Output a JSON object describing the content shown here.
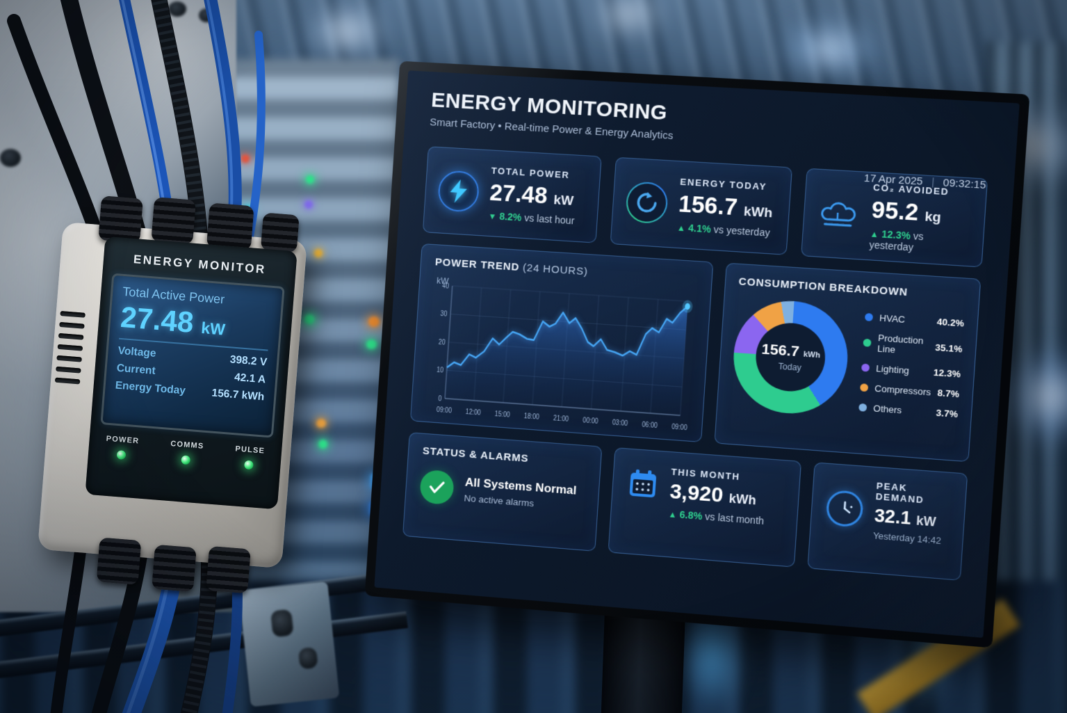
{
  "colors": {
    "accent_blue": "#2e7bf0",
    "accent_cyan": "#46c8ff",
    "positive_green": "#2fd08f",
    "led_green": "#3ce87c",
    "status_green": "#1ba25b",
    "stripe_yellow": "#e3b23a"
  },
  "device": {
    "title": "ENERGY MONITOR",
    "lcd": {
      "label": "Total Active Power",
      "value": "27.48",
      "unit": "kW",
      "rows": [
        {
          "label": "Voltage",
          "value": "398.2 V"
        },
        {
          "label": "Current",
          "value": "42.1 A"
        },
        {
          "label": "Energy Today",
          "value": "156.7 kWh"
        }
      ]
    },
    "leds": [
      {
        "label": "POWER"
      },
      {
        "label": "COMMS"
      },
      {
        "label": "PULSE"
      }
    ]
  },
  "monitor": {
    "header": {
      "title": "ENERGY MONITORING",
      "subtitle": "Smart Factory • Real-time Power & Energy Analytics",
      "date": "17 Apr 2025",
      "separator": "|",
      "time": "09:32:15"
    },
    "kpis": [
      {
        "label": "TOTAL POWER",
        "value": "27.48",
        "unit": "kW",
        "arrow": "▼",
        "delta": "8.2%",
        "delta_suffix": "vs last hour",
        "icon": "bolt"
      },
      {
        "label": "ENERGY TODAY",
        "value": "156.7",
        "unit": "kWh",
        "arrow": "▲",
        "delta": "4.1%",
        "delta_suffix": "vs yesterday",
        "icon": "cycle"
      },
      {
        "label": "CO₂ AVOIDED",
        "value": "95.2",
        "unit": "kg",
        "arrow": "▲",
        "delta": "12.3%",
        "delta_suffix": "vs yesterday",
        "icon": "cloud"
      }
    ],
    "power_trend": {
      "title": "POWER TREND",
      "subtitle": "(24 HOURS)",
      "unit_label": "kW"
    },
    "breakdown": {
      "title": "CONSUMPTION BREAKDOWN",
      "center_value": "156.7",
      "center_unit": "kWh",
      "center_sub": "Today"
    },
    "status": {
      "title": "STATUS & ALARMS",
      "headline": "All Systems Normal",
      "sub": "No active alarms"
    },
    "month": {
      "label": "THIS MONTH",
      "value": "3,920",
      "unit": "kWh",
      "arrow": "▲",
      "delta": "6.8%",
      "delta_suffix": "vs last month"
    },
    "peak": {
      "label": "PEAK DEMAND",
      "value": "32.1",
      "unit": "kW",
      "sub": "Yesterday 14:42"
    }
  },
  "chart_data": [
    {
      "type": "line",
      "title": "POWER TREND (24 HOURS)",
      "xlabel": "",
      "ylabel": "kW",
      "ylim": [
        0,
        40
      ],
      "yticks": [
        0,
        10,
        20,
        30,
        40
      ],
      "grid": true,
      "legend_position": "none",
      "series_color": "#46a6f5",
      "x_tick_labels": [
        "09:00",
        "12:00",
        "15:00",
        "18:00",
        "21:00",
        "00:00",
        "03:00",
        "06:00",
        "09:00"
      ],
      "x_hours": [
        0,
        0.7,
        1.4,
        2.2,
        2.9,
        3.7,
        4.5,
        5.2,
        5.9,
        6.5,
        7.2,
        8.0,
        8.7,
        9.5,
        10.2,
        10.8,
        11.5,
        12.2,
        12.8,
        13.5,
        14.2,
        14.8,
        15.5,
        16.2,
        17.0,
        17.8,
        18.5,
        19.2,
        20.0,
        20.6,
        21.3,
        22.0,
        22.6,
        23.3,
        24
      ],
      "values": [
        11,
        13,
        12.2,
        16.2,
        15.2,
        17.6,
        22.4,
        20.4,
        23.1,
        25.2,
        24.5,
        23.1,
        22.8,
        29.6,
        27.9,
        29.1,
        33.2,
        29.6,
        31.5,
        28.0,
        23.4,
        22.1,
        24.7,
        21.1,
        20.5,
        19.5,
        21.2,
        20.1,
        27.6,
        29.8,
        28.5,
        33.4,
        32.2,
        35.8,
        38.2
      ]
    },
    {
      "type": "pie",
      "title": "CONSUMPTION BREAKDOWN",
      "center_label": "156.7 kWh Today",
      "segments": [
        {
          "name": "HVAC",
          "pct": 40.2,
          "pct_label": "40.2%",
          "color": "#2e7bf0"
        },
        {
          "name": "Production Line",
          "pct": 35.1,
          "pct_label": "35.1%",
          "color": "#2ecc8f"
        },
        {
          "name": "Lighting",
          "pct": 12.3,
          "pct_label": "12.3%",
          "color": "#8b66f0"
        },
        {
          "name": "Compressors",
          "pct": 8.7,
          "pct_label": "8.7%",
          "color": "#f0a245"
        },
        {
          "name": "Others",
          "pct": 3.7,
          "pct_label": "3.7%",
          "color": "#7fb0e0"
        }
      ]
    }
  ]
}
